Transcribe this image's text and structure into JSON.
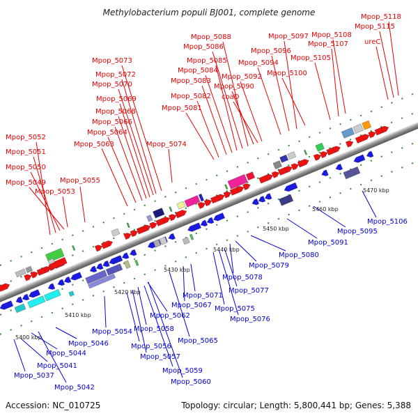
{
  "title": "Methylobacterium populi BJ001, complete genome",
  "accession": "Accession: NC_010725",
  "topology": "Topology: circular; Length: 5,800,441 bp; Genes: 5,388",
  "colors": {
    "label_above": "#e60000",
    "label_below": "#0000d8",
    "backbone_light": "#dcdcdc",
    "backbone_dark": "#666666"
  },
  "kbp_ticks": [
    "5400 kbp",
    "5410 kbp",
    "5420 kbp",
    "5430 kbp",
    "5440 kbp",
    "5450 kbp",
    "5460 kbp",
    "5470 kbp"
  ],
  "labels_above": [
    "Mpop_5052",
    "Mpop_5051",
    "Mpop_5050",
    "Mpop_5049",
    "Mpop_5053",
    "Mpop_5055",
    "Mpop_5063",
    "Mpop_5064",
    "Mpop_5066",
    "Mpop_5068",
    "Mpop_5069",
    "Mpop_5070",
    "Mpop_5072",
    "Mpop_5073",
    "Mpop_5074",
    "Mpop_5081",
    "Mpop_5082",
    "Mpop_5083",
    "Mpop_5084",
    "Mpop_5085",
    "Mpop_5086",
    "Mpop_5088",
    "Mpop_5090",
    "coaD",
    "Mpop_5092",
    "Mpop_5094",
    "Mpop_5096",
    "Mpop_5097",
    "Mpop_5100",
    "Mpop_5105",
    "Mpop_5107",
    "Mpop_5108",
    "ureC",
    "Mpop_5115",
    "Mpop_5118"
  ],
  "labels_below": [
    "Mpop_5037",
    "Mpop_5041",
    "Mpop_5042",
    "Mpop_5044",
    "Mpop_5046",
    "Mpop_5054",
    "Mpop_5056",
    "Mpop_5057",
    "Mpop_5058",
    "Mpop_5059",
    "Mpop_5060",
    "Mpop_5062",
    "Mpop_5065",
    "Mpop_5067",
    "Mpop_5071",
    "Mpop_5075",
    "Mpop_5076",
    "Mpop_5077",
    "Mpop_5078",
    "Mpop_5079",
    "Mpop_5080",
    "Mpop_5091",
    "Mpop_5095",
    "Mpop_5106"
  ]
}
